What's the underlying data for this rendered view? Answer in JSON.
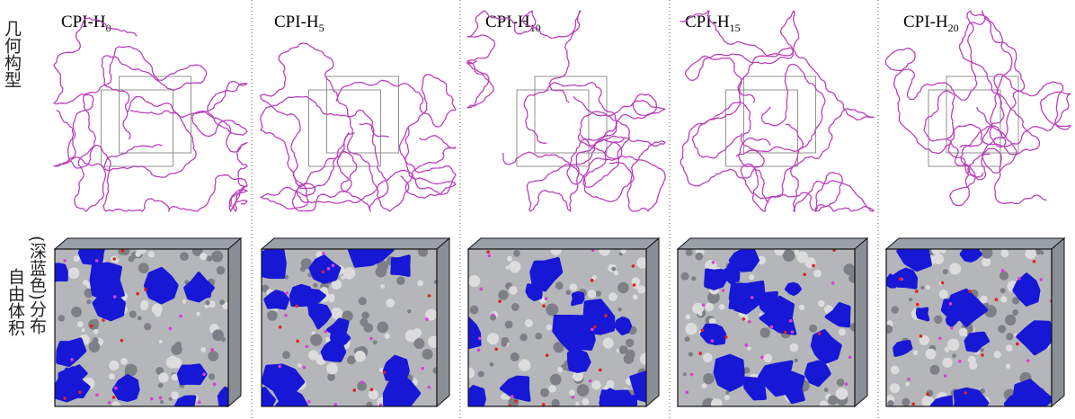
{
  "columns": [
    {
      "name": "CPI-H",
      "subscript": "0"
    },
    {
      "name": "CPI-H",
      "subscript": "5"
    },
    {
      "name": "CPI-H",
      "subscript": "10"
    },
    {
      "name": "CPI-H",
      "subscript": "15"
    },
    {
      "name": "CPI-H",
      "subscript": "20"
    }
  ],
  "row_labels": [
    {
      "lines": [
        "几何构型"
      ]
    },
    {
      "lines": [
        "自由体积",
        "(深蓝色)分布"
      ]
    }
  ]
}
